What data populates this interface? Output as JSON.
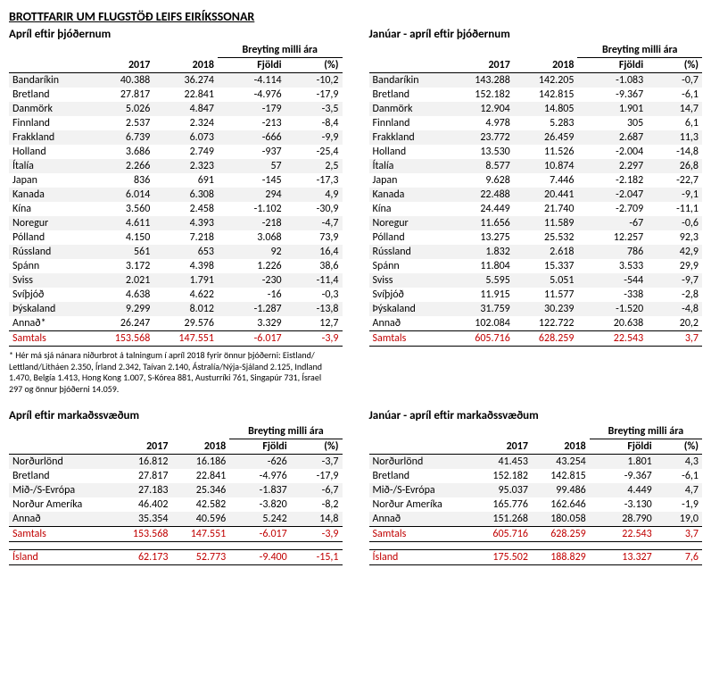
{
  "title": "BROTTFARIR UM FLUGSTÖÐ LEIFS EIRÍKSSONAR",
  "headers": {
    "change_group": "Breyting milli ára",
    "y2017": "2017",
    "y2018": "2018",
    "count": "Fjöldi",
    "pct": "(%)"
  },
  "footnote": "* Hér má sjá nánara niðurbrot á talningum í apríl 2018 fyrir önnur þjóðerni: Eistland/ Lettland/Litháen 2.350, Írland 2.342, Taívan 2.140, Ástralía/Nýja-Sjáland 2.125, Indland 1.470, Belgía 1.413, Hong Kong 1.007,  S-Kórea 881, Austurríki 761, Singapúr 731, Ísrael 297 og önnur þjóðerni 14.059.",
  "totals_label": "Samtals",
  "island_label": "Ísland",
  "sections": {
    "april_nat": {
      "title": "Apríl eftir þjóðernum",
      "rows": [
        [
          "Bandaríkin",
          "40.388",
          "36.274",
          "-4.114",
          "-10,2"
        ],
        [
          "Bretland",
          "27.817",
          "22.841",
          "-4.976",
          "-17,9"
        ],
        [
          "Danmörk",
          "5.026",
          "4.847",
          "-179",
          "-3,5"
        ],
        [
          "Finnland",
          "2.537",
          "2.324",
          "-213",
          "-8,4"
        ],
        [
          "Frakkland",
          "6.739",
          "6.073",
          "-666",
          "-9,9"
        ],
        [
          "Holland",
          "3.686",
          "2.749",
          "-937",
          "-25,4"
        ],
        [
          "Ítalía",
          "2.266",
          "2.323",
          "57",
          "2,5"
        ],
        [
          "Japan",
          "836",
          "691",
          "-145",
          "-17,3"
        ],
        [
          "Kanada",
          "6.014",
          "6.308",
          "294",
          "4,9"
        ],
        [
          "Kína",
          "3.560",
          "2.458",
          "-1.102",
          "-30,9"
        ],
        [
          "Noregur",
          "4.611",
          "4.393",
          "-218",
          "-4,7"
        ],
        [
          "Pólland",
          "4.150",
          "7.218",
          "3.068",
          "73,9"
        ],
        [
          "Rússland",
          "561",
          "653",
          "92",
          "16,4"
        ],
        [
          "Spánn",
          "3.172",
          "4.398",
          "1.226",
          "38,6"
        ],
        [
          "Sviss",
          "2.021",
          "1.791",
          "-230",
          "-11,4"
        ],
        [
          "Svíþjóð",
          "4.638",
          "4.622",
          "-16",
          "-0,3"
        ],
        [
          "Þýskaland",
          "9.299",
          "8.012",
          "-1.287",
          "-13,8"
        ],
        [
          "Annað*",
          "26.247",
          "29.576",
          "3.329",
          "12,7"
        ]
      ],
      "totals": [
        "153.568",
        "147.551",
        "-6.017",
        "-3,9"
      ]
    },
    "jan_apr_nat": {
      "title": "Janúar - apríl eftir þjóðernum",
      "rows": [
        [
          "Bandaríkin",
          "143.288",
          "142.205",
          "-1.083",
          "-0,7"
        ],
        [
          "Bretland",
          "152.182",
          "142.815",
          "-9.367",
          "-6,1"
        ],
        [
          "Danmörk",
          "12.904",
          "14.805",
          "1.901",
          "14,7"
        ],
        [
          "Finnland",
          "4.978",
          "5.283",
          "305",
          "6,1"
        ],
        [
          "Frakkland",
          "23.772",
          "26.459",
          "2.687",
          "11,3"
        ],
        [
          "Holland",
          "13.530",
          "11.526",
          "-2.004",
          "-14,8"
        ],
        [
          "Ítalía",
          "8.577",
          "10.874",
          "2.297",
          "26,8"
        ],
        [
          "Japan",
          "9.628",
          "7.446",
          "-2.182",
          "-22,7"
        ],
        [
          "Kanada",
          "22.488",
          "20.441",
          "-2.047",
          "-9,1"
        ],
        [
          "Kína",
          "24.449",
          "21.740",
          "-2.709",
          "-11,1"
        ],
        [
          "Noregur",
          "11.656",
          "11.589",
          "-67",
          "-0,6"
        ],
        [
          "Pólland",
          "13.275",
          "25.532",
          "12.257",
          "92,3"
        ],
        [
          "Rússland",
          "1.832",
          "2.618",
          "786",
          "42,9"
        ],
        [
          "Spánn",
          "11.804",
          "15.337",
          "3.533",
          "29,9"
        ],
        [
          "Sviss",
          "5.595",
          "5.051",
          "-544",
          "-9,7"
        ],
        [
          "Svíþjóð",
          "11.915",
          "11.577",
          "-338",
          "-2,8"
        ],
        [
          "Þýskaland",
          "31.759",
          "30.239",
          "-1.520",
          "-4,8"
        ],
        [
          "Annað",
          "102.084",
          "122.722",
          "20.638",
          "20,2"
        ]
      ],
      "totals": [
        "605.716",
        "628.259",
        "22.543",
        "3,7"
      ]
    },
    "april_mkt": {
      "title": "Apríl eftir markaðssvæðum",
      "rows": [
        [
          "Norðurlönd",
          "16.812",
          "16.186",
          "-626",
          "-3,7"
        ],
        [
          "Bretland",
          "27.817",
          "22.841",
          "-4.976",
          "-17,9"
        ],
        [
          "Mið-/S-Evrópa",
          "27.183",
          "25.346",
          "-1.837",
          "-6,7"
        ],
        [
          "Norður Ameríka",
          "46.402",
          "42.582",
          "-3.820",
          "-8,2"
        ],
        [
          "Annað",
          "35.354",
          "40.596",
          "5.242",
          "14,8"
        ]
      ],
      "totals": [
        "153.568",
        "147.551",
        "-6.017",
        "-3,9"
      ],
      "island": [
        "62.173",
        "52.773",
        "-9.400",
        "-15,1"
      ]
    },
    "jan_apr_mkt": {
      "title": "Janúar - apríl eftir markaðssvæðum",
      "rows": [
        [
          "Norðurlönd",
          "41.453",
          "43.254",
          "1.801",
          "4,3"
        ],
        [
          "Bretland",
          "152.182",
          "142.815",
          "-9.367",
          "-6,1"
        ],
        [
          "Mið-/S-Evrópa",
          "95.037",
          "99.486",
          "4.449",
          "4,7"
        ],
        [
          "Norður Ameríka",
          "165.776",
          "162.646",
          "-3.130",
          "-1,9"
        ],
        [
          "Annað",
          "151.268",
          "180.058",
          "28.790",
          "19,0"
        ]
      ],
      "totals": [
        "605.716",
        "628.259",
        "22.543",
        "3,7"
      ],
      "island": [
        "175.502",
        "188.829",
        "13.327",
        "7,6"
      ]
    }
  }
}
